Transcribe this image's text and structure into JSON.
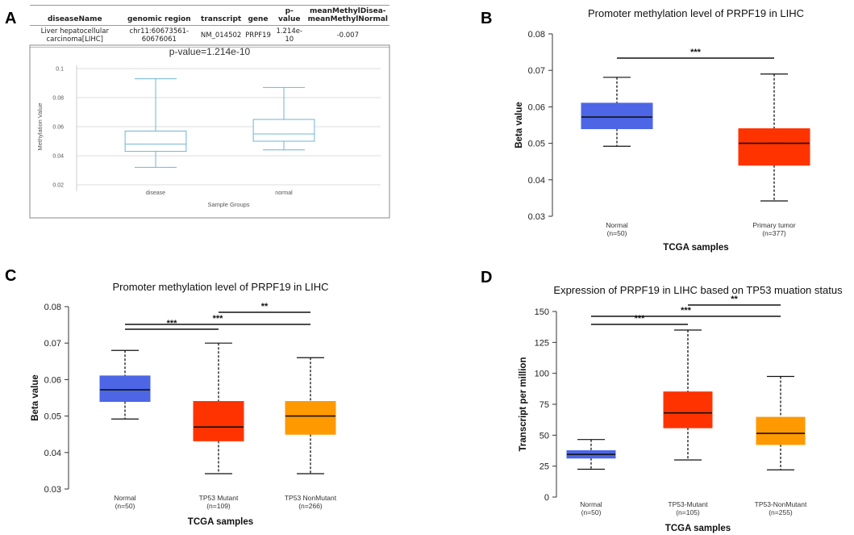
{
  "panels": {
    "A": {
      "letter": "A",
      "table": {
        "headers": [
          "diseaseName",
          "genomic region",
          "transcript",
          "gene",
          "p-value",
          "meanMethylDisea-meanMethylNormal"
        ],
        "row": [
          "Liver hepatocellular carcinoma[LIHC]",
          "chr11:60673561-60676061",
          "NM_014502",
          "PRPF19",
          "1.214e-10",
          "-0.007"
        ]
      }
    },
    "B": {
      "letter": "B"
    },
    "C": {
      "letter": "C"
    },
    "D": {
      "letter": "D"
    }
  },
  "chart_data": [
    {
      "id": "A",
      "type": "box",
      "title": "p-value=1.214e-10",
      "xlabel": "Sample Groups",
      "ylabel": "Methylation Value",
      "ylim": [
        0.02,
        0.1
      ],
      "yticks": [
        "0.02",
        "0.04",
        "0.06",
        "0.08",
        "0.1"
      ],
      "grid": true,
      "colors": {
        "box": "#6fb4d6"
      },
      "categories": [
        "disease",
        "normal"
      ],
      "boxes": [
        {
          "name": "disease",
          "min": 0.032,
          "q1": 0.043,
          "median": 0.048,
          "q3": 0.057,
          "max": 0.093
        },
        {
          "name": "normal",
          "min": 0.044,
          "q1": 0.05,
          "median": 0.055,
          "q3": 0.065,
          "max": 0.087
        }
      ]
    },
    {
      "id": "B",
      "type": "box",
      "title": "Promoter methylation level of PRPF19 in LIHC",
      "xlabel": "TCGA samples",
      "ylabel": "Beta value",
      "ylim": [
        0.03,
        0.08
      ],
      "yticks": [
        "0.03",
        "0.04",
        "0.05",
        "0.06",
        "0.07",
        "0.08"
      ],
      "categories": [
        "Normal",
        "Primary tumor"
      ],
      "counts": [
        "(n=50)",
        "(n=377)"
      ],
      "boxes": [
        {
          "name": "Normal",
          "min": 0.0492,
          "q1": 0.054,
          "median": 0.0572,
          "q3": 0.061,
          "max": 0.0681,
          "color": "#4c66e6"
        },
        {
          "name": "Primary tumor",
          "min": 0.0342,
          "q1": 0.044,
          "median": 0.05,
          "q3": 0.054,
          "max": 0.069,
          "color": "#ff3300"
        }
      ],
      "significance": [
        {
          "from": 0,
          "to": 1,
          "label": "***",
          "level": 0
        }
      ]
    },
    {
      "id": "C",
      "type": "box",
      "title": "Promoter methylation level of PRPF19 in LIHC",
      "xlabel": "TCGA samples",
      "ylabel": "Beta value",
      "ylim": [
        0.03,
        0.08
      ],
      "yticks": [
        "0.03",
        "0.04",
        "0.05",
        "0.06",
        "0.07",
        "0.08"
      ],
      "categories": [
        "Normal",
        "TP53 Mutant",
        "TP53 NonMutant"
      ],
      "counts": [
        "(n=50)",
        "(n=109)",
        "(n=266)"
      ],
      "boxes": [
        {
          "name": "Normal",
          "min": 0.0492,
          "q1": 0.054,
          "median": 0.0572,
          "q3": 0.061,
          "max": 0.068,
          "color": "#4c66e6"
        },
        {
          "name": "TP53 Mutant",
          "min": 0.0342,
          "q1": 0.0432,
          "median": 0.047,
          "q3": 0.054,
          "max": 0.07,
          "color": "#ff3300"
        },
        {
          "name": "TP53 NonMutant",
          "min": 0.0342,
          "q1": 0.045,
          "median": 0.05,
          "q3": 0.054,
          "max": 0.066,
          "color": "#ff9900"
        }
      ],
      "significance": [
        {
          "from": 0,
          "to": 1,
          "label": "***",
          "level": 0
        },
        {
          "from": 0,
          "to": 2,
          "label": "***",
          "level": 1
        },
        {
          "from": 1,
          "to": 2,
          "label": "**",
          "level": 2
        }
      ]
    },
    {
      "id": "D",
      "type": "box",
      "title": "Expression of PRPF19 in LIHC based on TP53 muation status",
      "xlabel": "TCGA samples",
      "ylabel": "Transcript per million",
      "ylim": [
        0,
        150
      ],
      "yticks": [
        "0",
        "25",
        "50",
        "75",
        "100",
        "125",
        "150"
      ],
      "categories": [
        "Normal",
        "TP53-Mutant",
        "TP53-NonMutant"
      ],
      "counts": [
        "(n=50)",
        "(n=105)",
        "(n=255)"
      ],
      "boxes": [
        {
          "name": "Normal",
          "min": 22.5,
          "q1": 31.5,
          "median": 34.5,
          "q3": 37.5,
          "max": 46.5,
          "color": "#4c66e6"
        },
        {
          "name": "TP53-Mutant",
          "min": 30,
          "q1": 56,
          "median": 68,
          "q3": 85,
          "max": 135,
          "color": "#ff3300"
        },
        {
          "name": "TP53-NonMutant",
          "min": 22,
          "q1": 42.5,
          "median": 51.5,
          "q3": 64.5,
          "max": 97.5,
          "color": "#ff9900"
        }
      ],
      "significance": [
        {
          "from": 0,
          "to": 1,
          "label": "***",
          "level": 0
        },
        {
          "from": 0,
          "to": 2,
          "label": "***",
          "level": 1
        },
        {
          "from": 1,
          "to": 2,
          "label": "**",
          "level": 2
        }
      ]
    }
  ]
}
